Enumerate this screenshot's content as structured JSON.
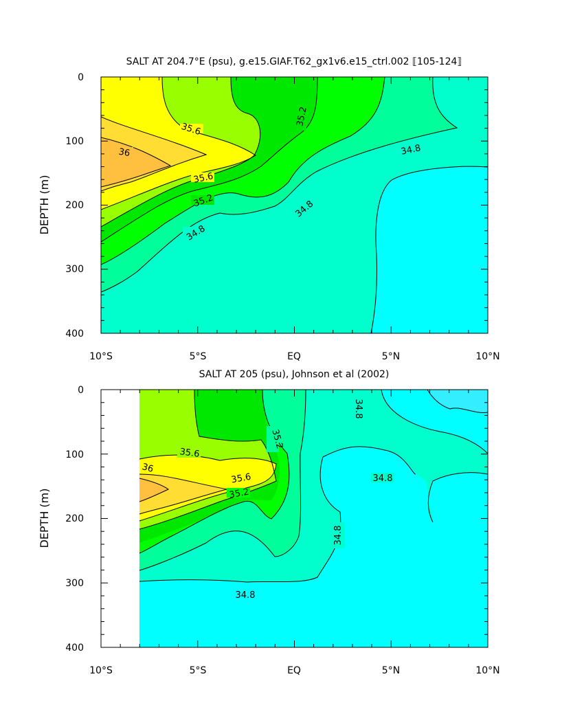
{
  "chart_data": [
    {
      "type": "contour",
      "title": "SALT AT 204.7°E (psu), g.e15.GIAF.T62_gx1v6.e15_ctrl.002 ⟦105-124⟧",
      "xlabel": "",
      "ylabel": "DEPTH (m)",
      "xlim": [
        -10,
        10
      ],
      "ylim": [
        400,
        0
      ],
      "x_tick_labels": [
        "10°S",
        "5°S",
        "EQ",
        "5°N",
        "10°N"
      ],
      "y_tick_labels": [
        "0",
        "100",
        "200",
        "300",
        "400"
      ],
      "contour_labels": [
        "35.6",
        "36",
        "35.6",
        "35.2",
        "35.2",
        "34.8",
        "34.8",
        "34.8"
      ],
      "colors": {
        "lt35": "#00ffff",
        "35_348": "#00ffcc",
        "348_350": "#00ff9a",
        "350_352": "#00ff00",
        "352_354": "#00e800",
        "354_356": "#99ff00",
        "356_358": "#ffff00",
        "358_36": "#ffdd33",
        "gt36": "#ffc040"
      }
    },
    {
      "type": "contour",
      "title": "SALT AT 205 (psu), Johnson et al (2002)",
      "xlabel": "",
      "ylabel": "DEPTH (m)",
      "xlim": [
        -10,
        10
      ],
      "ylim": [
        400,
        0
      ],
      "data_xrange": [
        -8,
        10
      ],
      "x_tick_labels": [
        "10°S",
        "5°S",
        "EQ",
        "5°N",
        "10°N"
      ],
      "y_tick_labels": [
        "0",
        "100",
        "200",
        "300",
        "400"
      ],
      "contour_labels": [
        "35.6",
        "36",
        "35.6",
        "35.2",
        "35.2",
        "34.8",
        "34.8",
        "34.8",
        "34.8"
      ],
      "colors": {
        "lt346": "#33eeff",
        "346_348": "#00ffff",
        "348_350": "#00ffcc",
        "350_352": "#00ff9a",
        "352_354": "#00ff00",
        "354_356": "#99ff00",
        "356_358": "#ffff00",
        "358_36": "#ffdd33",
        "gt36": "#ffc040"
      }
    }
  ]
}
